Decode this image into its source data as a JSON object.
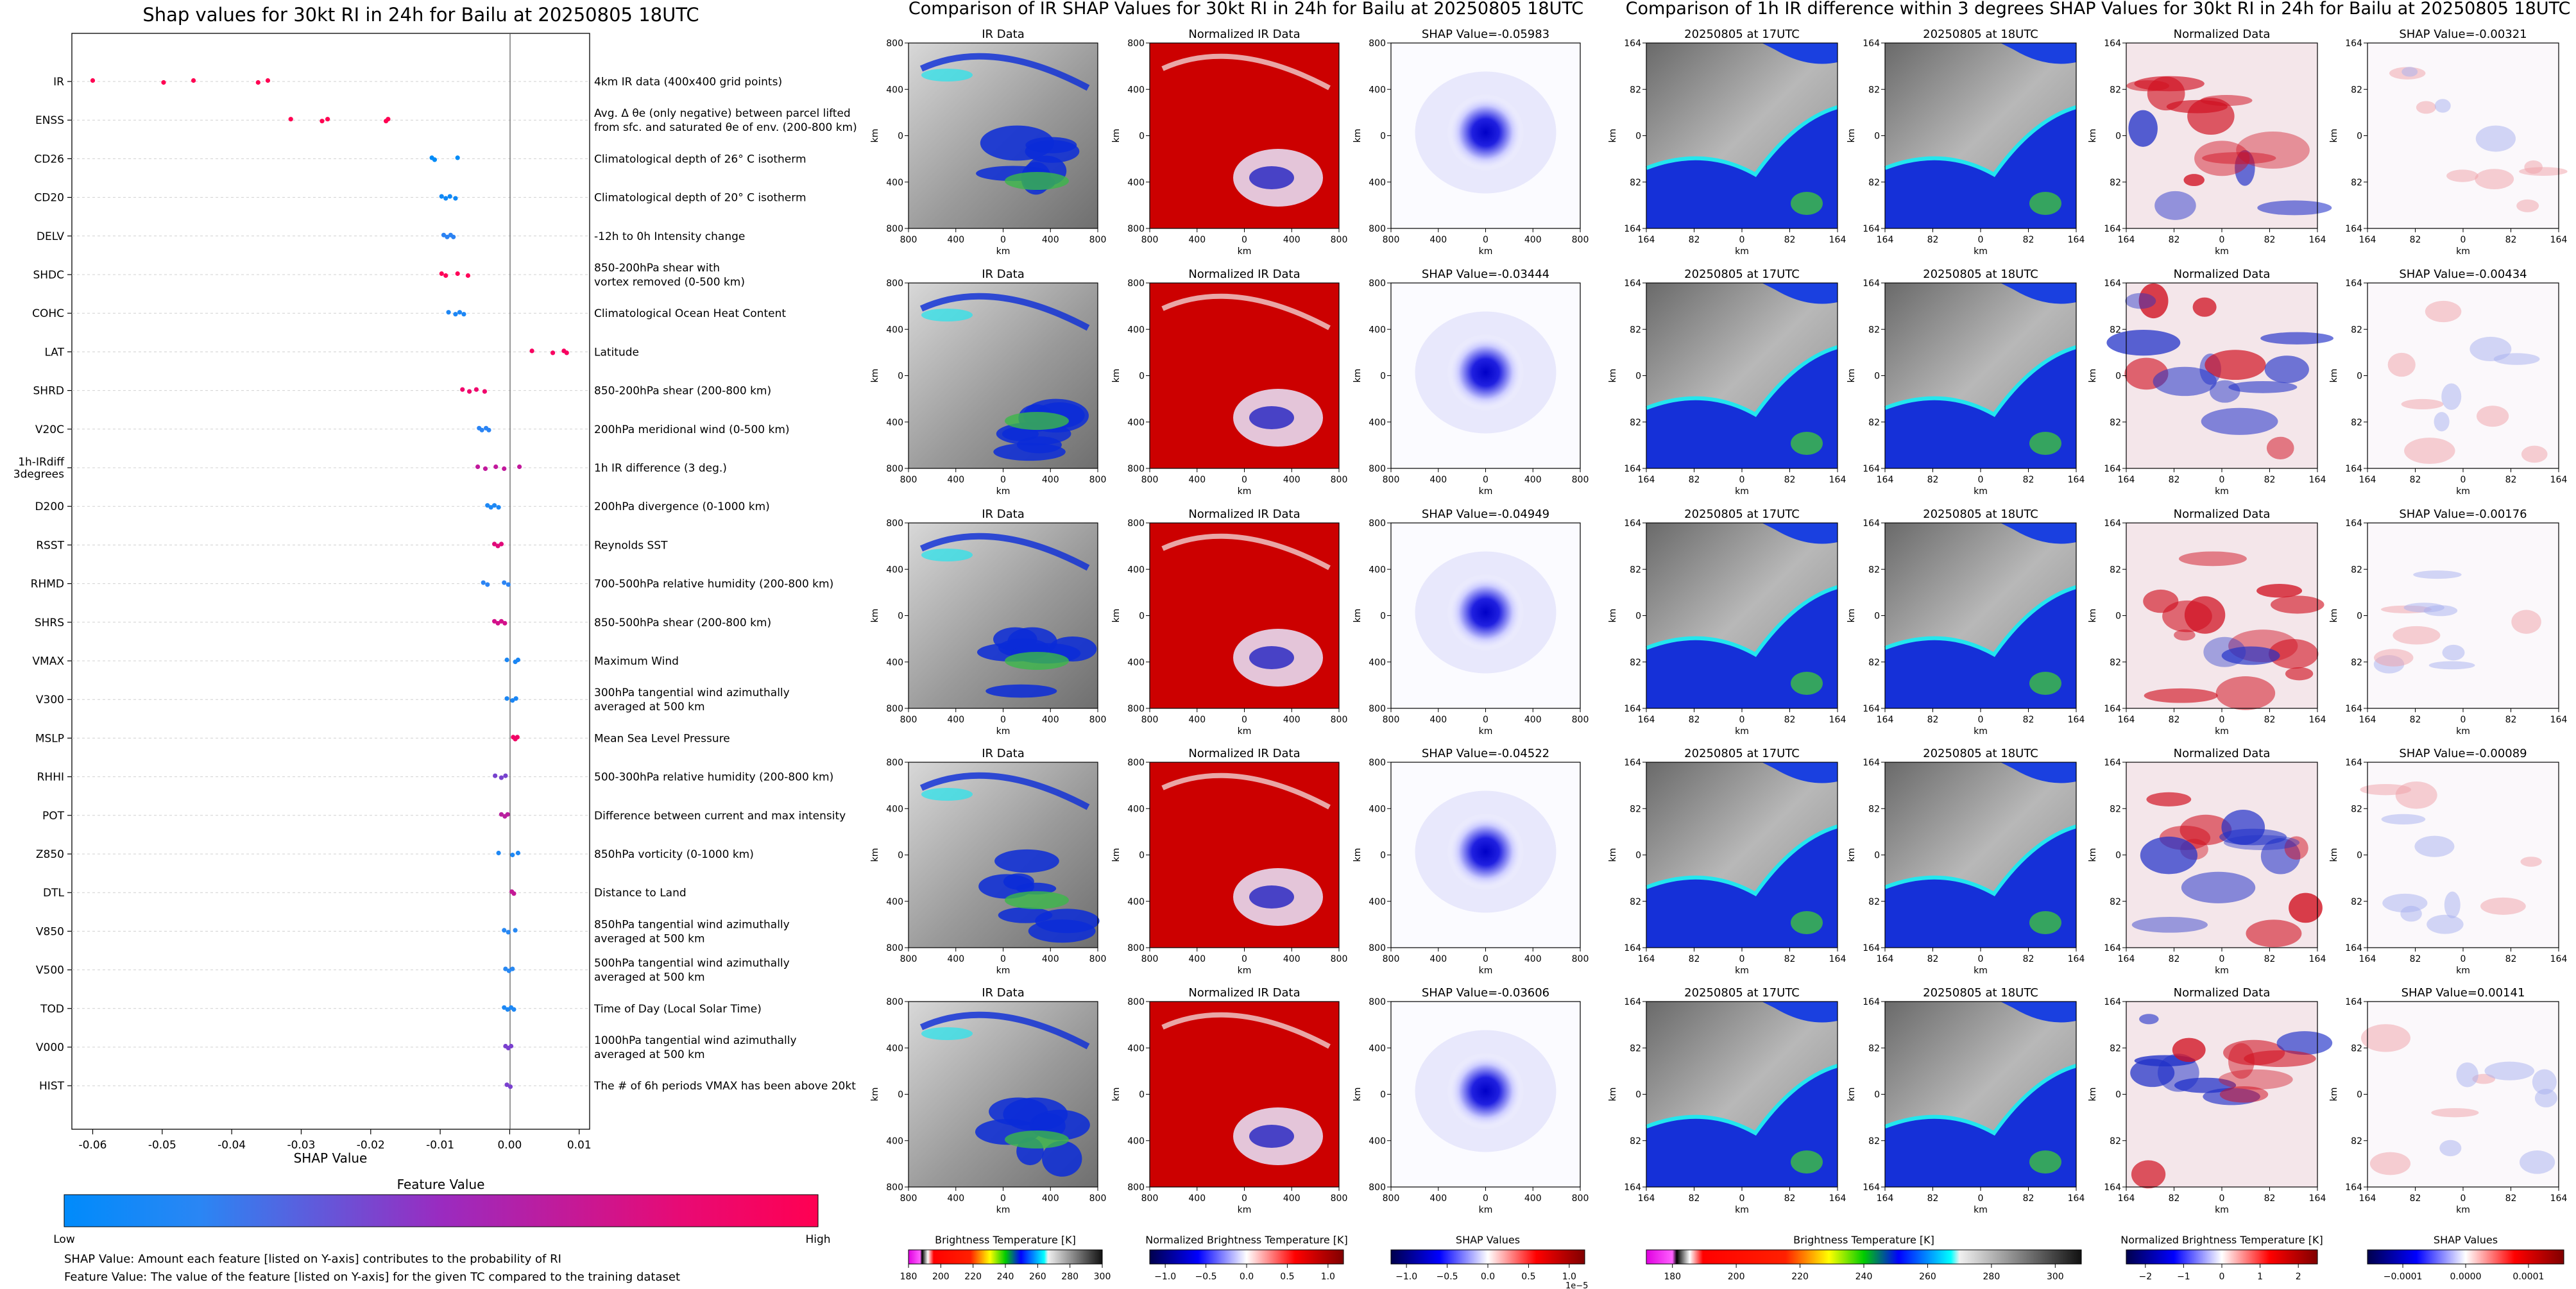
{
  "left": {
    "title": "Shap values for 30kt RI in 24h for Bailu at 20250805 18UTC",
    "xlabel": "SHAP Value",
    "colorbar_title": "Feature Value",
    "colorbar_low": "Low",
    "colorbar_high": "High",
    "footnote1": "SHAP Value: Amount each feature [listed on Y-axis] contributes to the probability of RI",
    "footnote2": "Feature Value: The value of the feature [listed on Y-axis] for the given TC compared to the training dataset"
  },
  "chart_data": [
    {
      "type": "scatter",
      "title": "Shap values for 30kt RI in 24h for Bailu at 20250805 18UTC",
      "xlabel": "SHAP Value",
      "xlim": [
        -0.063,
        0.0115
      ],
      "xticks": [
        "-0.06",
        "-0.05",
        "-0.04",
        "-0.03",
        "-0.02",
        "-0.01",
        "0.00",
        "0.01"
      ],
      "xtick_values": [
        -0.06,
        -0.05,
        -0.04,
        -0.03,
        -0.02,
        -0.01,
        0.0,
        0.01
      ],
      "legend": "colorbar Feature Value Low to High",
      "features": [
        {
          "name": "IR",
          "label": "4km IR data (400x400 grid points)",
          "color": "#ff0052",
          "values": [
            -0.06,
            -0.0498,
            -0.0455,
            -0.0362,
            -0.0348
          ]
        },
        {
          "name": "ENSS",
          "label": "Avg. Δ θe (only negative) between parcel lifted\nfrom sfc. and saturated θe of env. (200-800 km)",
          "color": "#ff0052",
          "values": [
            -0.0315,
            -0.027,
            -0.0262,
            -0.0178,
            -0.0175
          ]
        },
        {
          "name": "CD26",
          "label": "Climatological depth of 26° C isotherm",
          "color": "#008bf7",
          "values": [
            -0.0112,
            -0.0108,
            -0.0075
          ]
        },
        {
          "name": "CD20",
          "label": "Climatological depth of 20° C isotherm",
          "color": "#0f88f5",
          "values": [
            -0.0098,
            -0.0092,
            -0.0086,
            -0.0078
          ]
        },
        {
          "name": "DELV",
          "label": "-12h to 0h Intensity change",
          "color": "#2b82f2",
          "values": [
            -0.0095,
            -0.009,
            -0.0085,
            -0.0081
          ]
        },
        {
          "name": "SHDC",
          "label": "850-200hPa shear with\nvortex removed (0-500 km)",
          "color": "#ff0058",
          "values": [
            -0.0098,
            -0.0092,
            -0.0075,
            -0.006
          ]
        },
        {
          "name": "COHC",
          "label": "Climatological Ocean Heat Content",
          "color": "#1d86f4",
          "values": [
            -0.0088,
            -0.0078,
            -0.0072,
            -0.0066
          ]
        },
        {
          "name": "LAT",
          "label": "Latitude",
          "color": "#f80060",
          "values": [
            0.0032,
            0.0062,
            0.0078,
            0.0082
          ]
        },
        {
          "name": "SHRD",
          "label": "850-200hPa shear (200-800 km)",
          "color": "#f0056c",
          "values": [
            -0.0068,
            -0.0058,
            -0.0048,
            -0.0036
          ]
        },
        {
          "name": "V20C",
          "label": "200hPa meridional wind (0-500 km)",
          "color": "#2a84f4",
          "values": [
            -0.0044,
            -0.004,
            -0.0034,
            -0.003
          ]
        },
        {
          "name": "1h-IRdiff\n3degrees",
          "label": "1h IR difference (3 deg.)",
          "color": "#c2189c",
          "values": [
            -0.0046,
            -0.0035,
            -0.002,
            -0.0008,
            0.0014
          ]
        },
        {
          "name": "D200",
          "label": "200hPa divergence (0-1000 km)",
          "color": "#1e88f4",
          "values": [
            -0.0032,
            -0.0027,
            -0.0022,
            -0.0016
          ]
        },
        {
          "name": "RSST",
          "label": "Reynolds SST",
          "color": "#e10a7a",
          "values": [
            -0.0022,
            -0.0017,
            -0.0012
          ]
        },
        {
          "name": "RHMD",
          "label": "700-500hPa relative humidity (200-800 km)",
          "color": "#2c84f3",
          "values": [
            -0.0038,
            -0.0032,
            -0.0008,
            -0.0002
          ]
        },
        {
          "name": "SHRS",
          "label": "850-500hPa shear (200-800 km)",
          "color": "#d3108a",
          "values": [
            -0.0022,
            -0.0017,
            -0.0012,
            -0.0007
          ]
        },
        {
          "name": "VMAX",
          "label": "Maximum Wind",
          "color": "#1a86f4",
          "values": [
            -0.0004,
            0.0008,
            0.0012
          ]
        },
        {
          "name": "V300",
          "label": "300hPa tangential wind azimuthally\naveraged at 500 km",
          "color": "#1b86f4",
          "values": [
            -0.0004,
            0.0004,
            0.0009
          ]
        },
        {
          "name": "MSLP",
          "label": "Mean Sea Level Pressure",
          "color": "#f00464",
          "values": [
            0.0005,
            0.0008,
            0.0011
          ]
        },
        {
          "name": "RHHI",
          "label": "500-300hPa relative humidity (200-800 km)",
          "color": "#7742ce",
          "values": [
            -0.0021,
            -0.0012,
            -0.0006
          ]
        },
        {
          "name": "POT",
          "label": "Difference between current and max intensity",
          "color": "#b9209f",
          "values": [
            -0.0012,
            -0.0007,
            -0.0003
          ]
        },
        {
          "name": "Z850",
          "label": "850hPa vorticity (0-1000 km)",
          "color": "#1f88f4",
          "values": [
            -0.0016,
            0.0004,
            0.0012
          ]
        },
        {
          "name": "DTL",
          "label": "Distance to Land",
          "color": "#c41a96",
          "values": [
            0.0003,
            0.0006
          ]
        },
        {
          "name": "V850",
          "label": "850hPa tangential wind azimuthally\naveraged at 500 km",
          "color": "#2888f3",
          "values": [
            -0.0008,
            -0.0002,
            0.0008
          ]
        },
        {
          "name": "V500",
          "label": "500hPa tangential wind azimuthally\naveraged at 500 km",
          "color": "#2888f3",
          "values": [
            -0.0006,
            -0.0001,
            0.0004
          ]
        },
        {
          "name": "TOD",
          "label": "Time of Day (Local Solar Time)",
          "color": "#1e88f4",
          "values": [
            -0.0008,
            -0.0003,
            0.0002,
            0.0006
          ]
        },
        {
          "name": "V000",
          "label": "1000hPa tangential wind azimuthally\naveraged at 500 km",
          "color": "#7a40cf",
          "values": [
            -0.0006,
            -0.0002,
            0.0002
          ]
        },
        {
          "name": "HIST",
          "label": "The # of 6h periods VMAX has been above 20kt",
          "color": "#7a40cf",
          "values": [
            -0.0004,
            0.0001
          ]
        }
      ]
    },
    {
      "type": "heatmap",
      "title": "Comparison of IR SHAP Values for 30kt RI in 24h for Bailu at 20250805 18UTC",
      "columns": [
        "IR Data",
        "Normalized IR Data",
        "SHAP Value"
      ],
      "shap_values": [
        "-0.05983",
        "-0.03444",
        "-0.04949",
        "-0.04522",
        "-0.03606"
      ],
      "axis_ticks": [
        "800",
        "400",
        "0",
        "400",
        "800"
      ],
      "axis_label": "km",
      "colorbars": [
        {
          "title": "Brightness Temperature [K]",
          "ticks": [
            "180",
            "200",
            "220",
            "240",
            "260",
            "280",
            "300"
          ]
        },
        {
          "title": "Normalized Brightness Temperature [K]",
          "ticks": [
            "−1.0",
            "−0.5",
            "0.0",
            "0.5",
            "1.0"
          ]
        },
        {
          "title": "SHAP Values",
          "ticks": [
            "−1.0",
            "−0.5",
            "0.0",
            "0.5",
            "1.0"
          ],
          "offset": "1e−5"
        }
      ]
    },
    {
      "type": "heatmap",
      "title": "Comparison of 1h IR difference within 3 degrees SHAP Values for 30kt RI in 24h for Bailu at 20250805 18UTC",
      "columns": [
        "20250805 at 17UTC",
        "20250805 at 18UTC",
        "Normalized Data",
        "SHAP Value"
      ],
      "shap_values": [
        "-0.00321",
        "-0.00434",
        "-0.00176",
        "-0.00089",
        "0.00141"
      ],
      "axis_ticks": [
        "164",
        "82",
        "0",
        "82",
        "164"
      ],
      "axis_label": "km",
      "colorbars": [
        {
          "title": "Brightness Temperature [K]",
          "ticks": [
            "180",
            "200",
            "220",
            "240",
            "260",
            "280",
            "300"
          ]
        },
        {
          "title": "Normalized Brightness Temperature [K]",
          "ticks": [
            "−2",
            "−1",
            "0",
            "1",
            "2"
          ]
        },
        {
          "title": "SHAP Values",
          "ticks": [
            "−0.0001",
            "0.0000",
            "0.0001"
          ]
        }
      ]
    }
  ],
  "mid": {
    "title": "Comparison of IR SHAP Values for 30kt RI in 24h for Bailu at 20250805 18UTC",
    "col_titles": [
      "IR Data",
      "Normalized IR Data"
    ],
    "shap_prefix": "SHAP Value=",
    "axis_label": "km",
    "cb1_title": "Brightness Temperature [K]",
    "cb2_title": "Normalized Brightness Temperature [K]",
    "cb3_title": "SHAP Values",
    "cb3_offset": "1e−5"
  },
  "right": {
    "title": "Comparison of 1h IR difference within 3 degrees SHAP Values for 30kt RI in 24h for Bailu at 20250805 18UTC",
    "col_titles": [
      "20250805 at 17UTC",
      "20250805 at 18UTC",
      "Normalized Data"
    ],
    "shap_prefix": "SHAP Value=",
    "axis_label": "km",
    "cb1_title": "Brightness Temperature [K]",
    "cb2_title": "Normalized Brightness Temperature [K]",
    "cb3_title": "SHAP Values"
  },
  "colors": {
    "low": "#008bfb",
    "high": "#ff0052",
    "red": "#cc0000",
    "blue": "#0000cc",
    "ir_blue": "#0a2cd8",
    "ir_cyan": "#23e6ee",
    "ir_green": "#3bb84a"
  }
}
